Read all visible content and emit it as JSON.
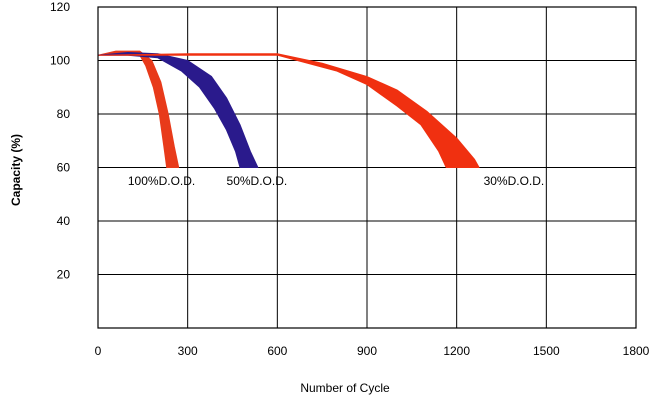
{
  "chart_data": {
    "type": "area",
    "title": "",
    "xlabel": "Number of Cycle",
    "ylabel": "Capacity (%)",
    "xlim": [
      0,
      1800
    ],
    "ylim": [
      0,
      120
    ],
    "x_ticks": [
      "0",
      "300",
      "600",
      "900",
      "1200",
      "1500",
      "1800"
    ],
    "y_ticks": [
      "20",
      "40",
      "60",
      "80",
      "100",
      "120"
    ],
    "x_tick_values": [
      0,
      300,
      600,
      900,
      1200,
      1500,
      1800
    ],
    "y_tick_values": [
      20,
      40,
      60,
      80,
      100,
      120
    ],
    "grid": true,
    "series": [
      {
        "name": "100%D.O.D.",
        "color": "#e83a1a",
        "upper": [
          [
            0,
            102
          ],
          [
            60,
            103.5
          ],
          [
            140,
            103.5
          ],
          [
            180,
            100
          ],
          [
            210,
            92
          ],
          [
            235,
            80
          ],
          [
            255,
            68
          ],
          [
            270,
            60
          ]
        ],
        "lower": [
          [
            0,
            102
          ],
          [
            60,
            102.5
          ],
          [
            140,
            102
          ],
          [
            160,
            98
          ],
          [
            185,
            90
          ],
          [
            205,
            80
          ],
          [
            220,
            68
          ],
          [
            230,
            60
          ]
        ]
      },
      {
        "name": "50%D.O.D.",
        "color": "#2a1a8c",
        "upper": [
          [
            0,
            102
          ],
          [
            100,
            103
          ],
          [
            200,
            102.5
          ],
          [
            300,
            100
          ],
          [
            380,
            94
          ],
          [
            430,
            86
          ],
          [
            475,
            76
          ],
          [
            510,
            66
          ],
          [
            535,
            60
          ]
        ],
        "lower": [
          [
            0,
            102
          ],
          [
            100,
            102
          ],
          [
            200,
            101
          ],
          [
            280,
            96
          ],
          [
            340,
            90
          ],
          [
            390,
            82
          ],
          [
            430,
            74
          ],
          [
            460,
            66
          ],
          [
            475,
            60
          ]
        ]
      },
      {
        "name": "30%D.O.D.",
        "color": "#f03010",
        "upper": [
          [
            0,
            102
          ],
          [
            300,
            102.5
          ],
          [
            600,
            102.5
          ],
          [
            750,
            99
          ],
          [
            900,
            94
          ],
          [
            1000,
            89
          ],
          [
            1100,
            81
          ],
          [
            1200,
            71
          ],
          [
            1260,
            63
          ],
          [
            1275,
            60
          ]
        ],
        "lower": [
          [
            0,
            102
          ],
          [
            300,
            102
          ],
          [
            600,
            102
          ],
          [
            700,
            99
          ],
          [
            800,
            96
          ],
          [
            900,
            91
          ],
          [
            1000,
            83
          ],
          [
            1080,
            76
          ],
          [
            1140,
            66
          ],
          [
            1165,
            60
          ]
        ]
      }
    ],
    "annotations": [
      {
        "text": "100%D.O.D.",
        "x": 100,
        "y": 55
      },
      {
        "text": "50%D.O.D.",
        "x": 430,
        "y": 55
      },
      {
        "text": "30%D.O.D.",
        "x": 1290,
        "y": 55
      }
    ]
  }
}
